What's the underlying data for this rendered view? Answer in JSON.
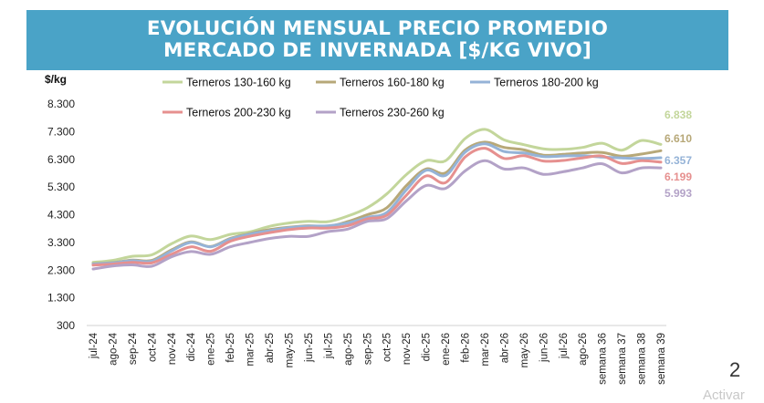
{
  "header": {
    "title_line1": "EVOLUCIÓN MENSUAL PRECIO PROMEDIO",
    "title_line2": "MERCADO DE INVERNADA [$/KG VIVO]"
  },
  "page_number": "2",
  "watermark": "Activar",
  "colors": {
    "banner": "#4aa3c7",
    "Terneros 130-160 kg": "#c3d69b",
    "Terneros 160-180 kg": "#b7a878",
    "Terneros 180-200 kg": "#95b3d7",
    "Terneros 200-230 kg": "#e6908f",
    "Terneros 230-260 kg": "#b3a2c7"
  },
  "chart_data": {
    "type": "line",
    "ylabel": "$/kg",
    "ylim": [
      300,
      8300
    ],
    "yticks": [
      "8.300",
      "7.300",
      "6.300",
      "5.300",
      "4.300",
      "3.300",
      "2.300",
      "1.300",
      "300"
    ],
    "ytick_values": [
      8300,
      7300,
      6300,
      5300,
      4300,
      3300,
      2300,
      1300,
      300
    ],
    "legend_position": "top",
    "grid": false,
    "categories": [
      "jul-24",
      "ago-24",
      "sep-24",
      "oct-24",
      "nov-24",
      "dic-24",
      "ene-25",
      "feb-25",
      "mar-25",
      "abr-25",
      "may-25",
      "jun-25",
      "jul-25",
      "ago-25",
      "sep-25",
      "oct-25",
      "nov-25",
      "dic-25",
      "ene-26",
      "feb-26",
      "mar-26",
      "abr-26",
      "may-26",
      "jun-26",
      "jul-26",
      "ago-26",
      "semana 36",
      "semana 37",
      "semana 38",
      "semana 39"
    ],
    "series": [
      {
        "name": "Terneros 130-160 kg",
        "color": "#c3d69b",
        "end_label": "6.838",
        "values": [
          2580,
          2650,
          2800,
          2850,
          3250,
          3530,
          3400,
          3590,
          3680,
          3880,
          4000,
          4060,
          4050,
          4250,
          4550,
          5050,
          5750,
          6250,
          6250,
          7050,
          7380,
          7000,
          6830,
          6680,
          6660,
          6730,
          6880,
          6630,
          6980,
          6838
        ]
      },
      {
        "name": "Terneros 160-180 kg",
        "color": "#b7a878",
        "end_label": "6.610",
        "values": [
          2530,
          2570,
          2660,
          2650,
          3030,
          3320,
          3150,
          3440,
          3620,
          3760,
          3850,
          3900,
          3880,
          4050,
          4300,
          4550,
          5350,
          5950,
          5810,
          6630,
          6920,
          6730,
          6640,
          6450,
          6480,
          6530,
          6550,
          6410,
          6490,
          6610
        ]
      },
      {
        "name": "Terneros 180-200 kg",
        "color": "#95b3d7",
        "end_label": "6.357",
        "values": [
          2520,
          2560,
          2640,
          2620,
          2990,
          3300,
          3140,
          3420,
          3600,
          3720,
          3830,
          3890,
          3900,
          4000,
          4200,
          4380,
          5200,
          5900,
          5720,
          6560,
          6860,
          6580,
          6530,
          6400,
          6420,
          6430,
          6380,
          6350,
          6330,
          6357
        ]
      },
      {
        "name": "Terneros 200-230 kg",
        "color": "#e6908f",
        "end_label": "6.199",
        "values": [
          2480,
          2520,
          2580,
          2560,
          2870,
          3140,
          2980,
          3340,
          3520,
          3650,
          3760,
          3820,
          3820,
          3900,
          4150,
          4280,
          5000,
          5700,
          5460,
          6380,
          6700,
          6330,
          6430,
          6240,
          6260,
          6350,
          6420,
          6150,
          6250,
          6199
        ]
      },
      {
        "name": "Terneros 230-260 kg",
        "color": "#b3a2c7",
        "end_label": "5.993",
        "values": [
          2340,
          2450,
          2490,
          2440,
          2780,
          2970,
          2870,
          3140,
          3300,
          3440,
          3520,
          3520,
          3690,
          3780,
          4060,
          4160,
          4800,
          5350,
          5250,
          5880,
          6250,
          5950,
          5990,
          5760,
          5850,
          5990,
          6140,
          5810,
          5990,
          5993
        ]
      }
    ]
  }
}
